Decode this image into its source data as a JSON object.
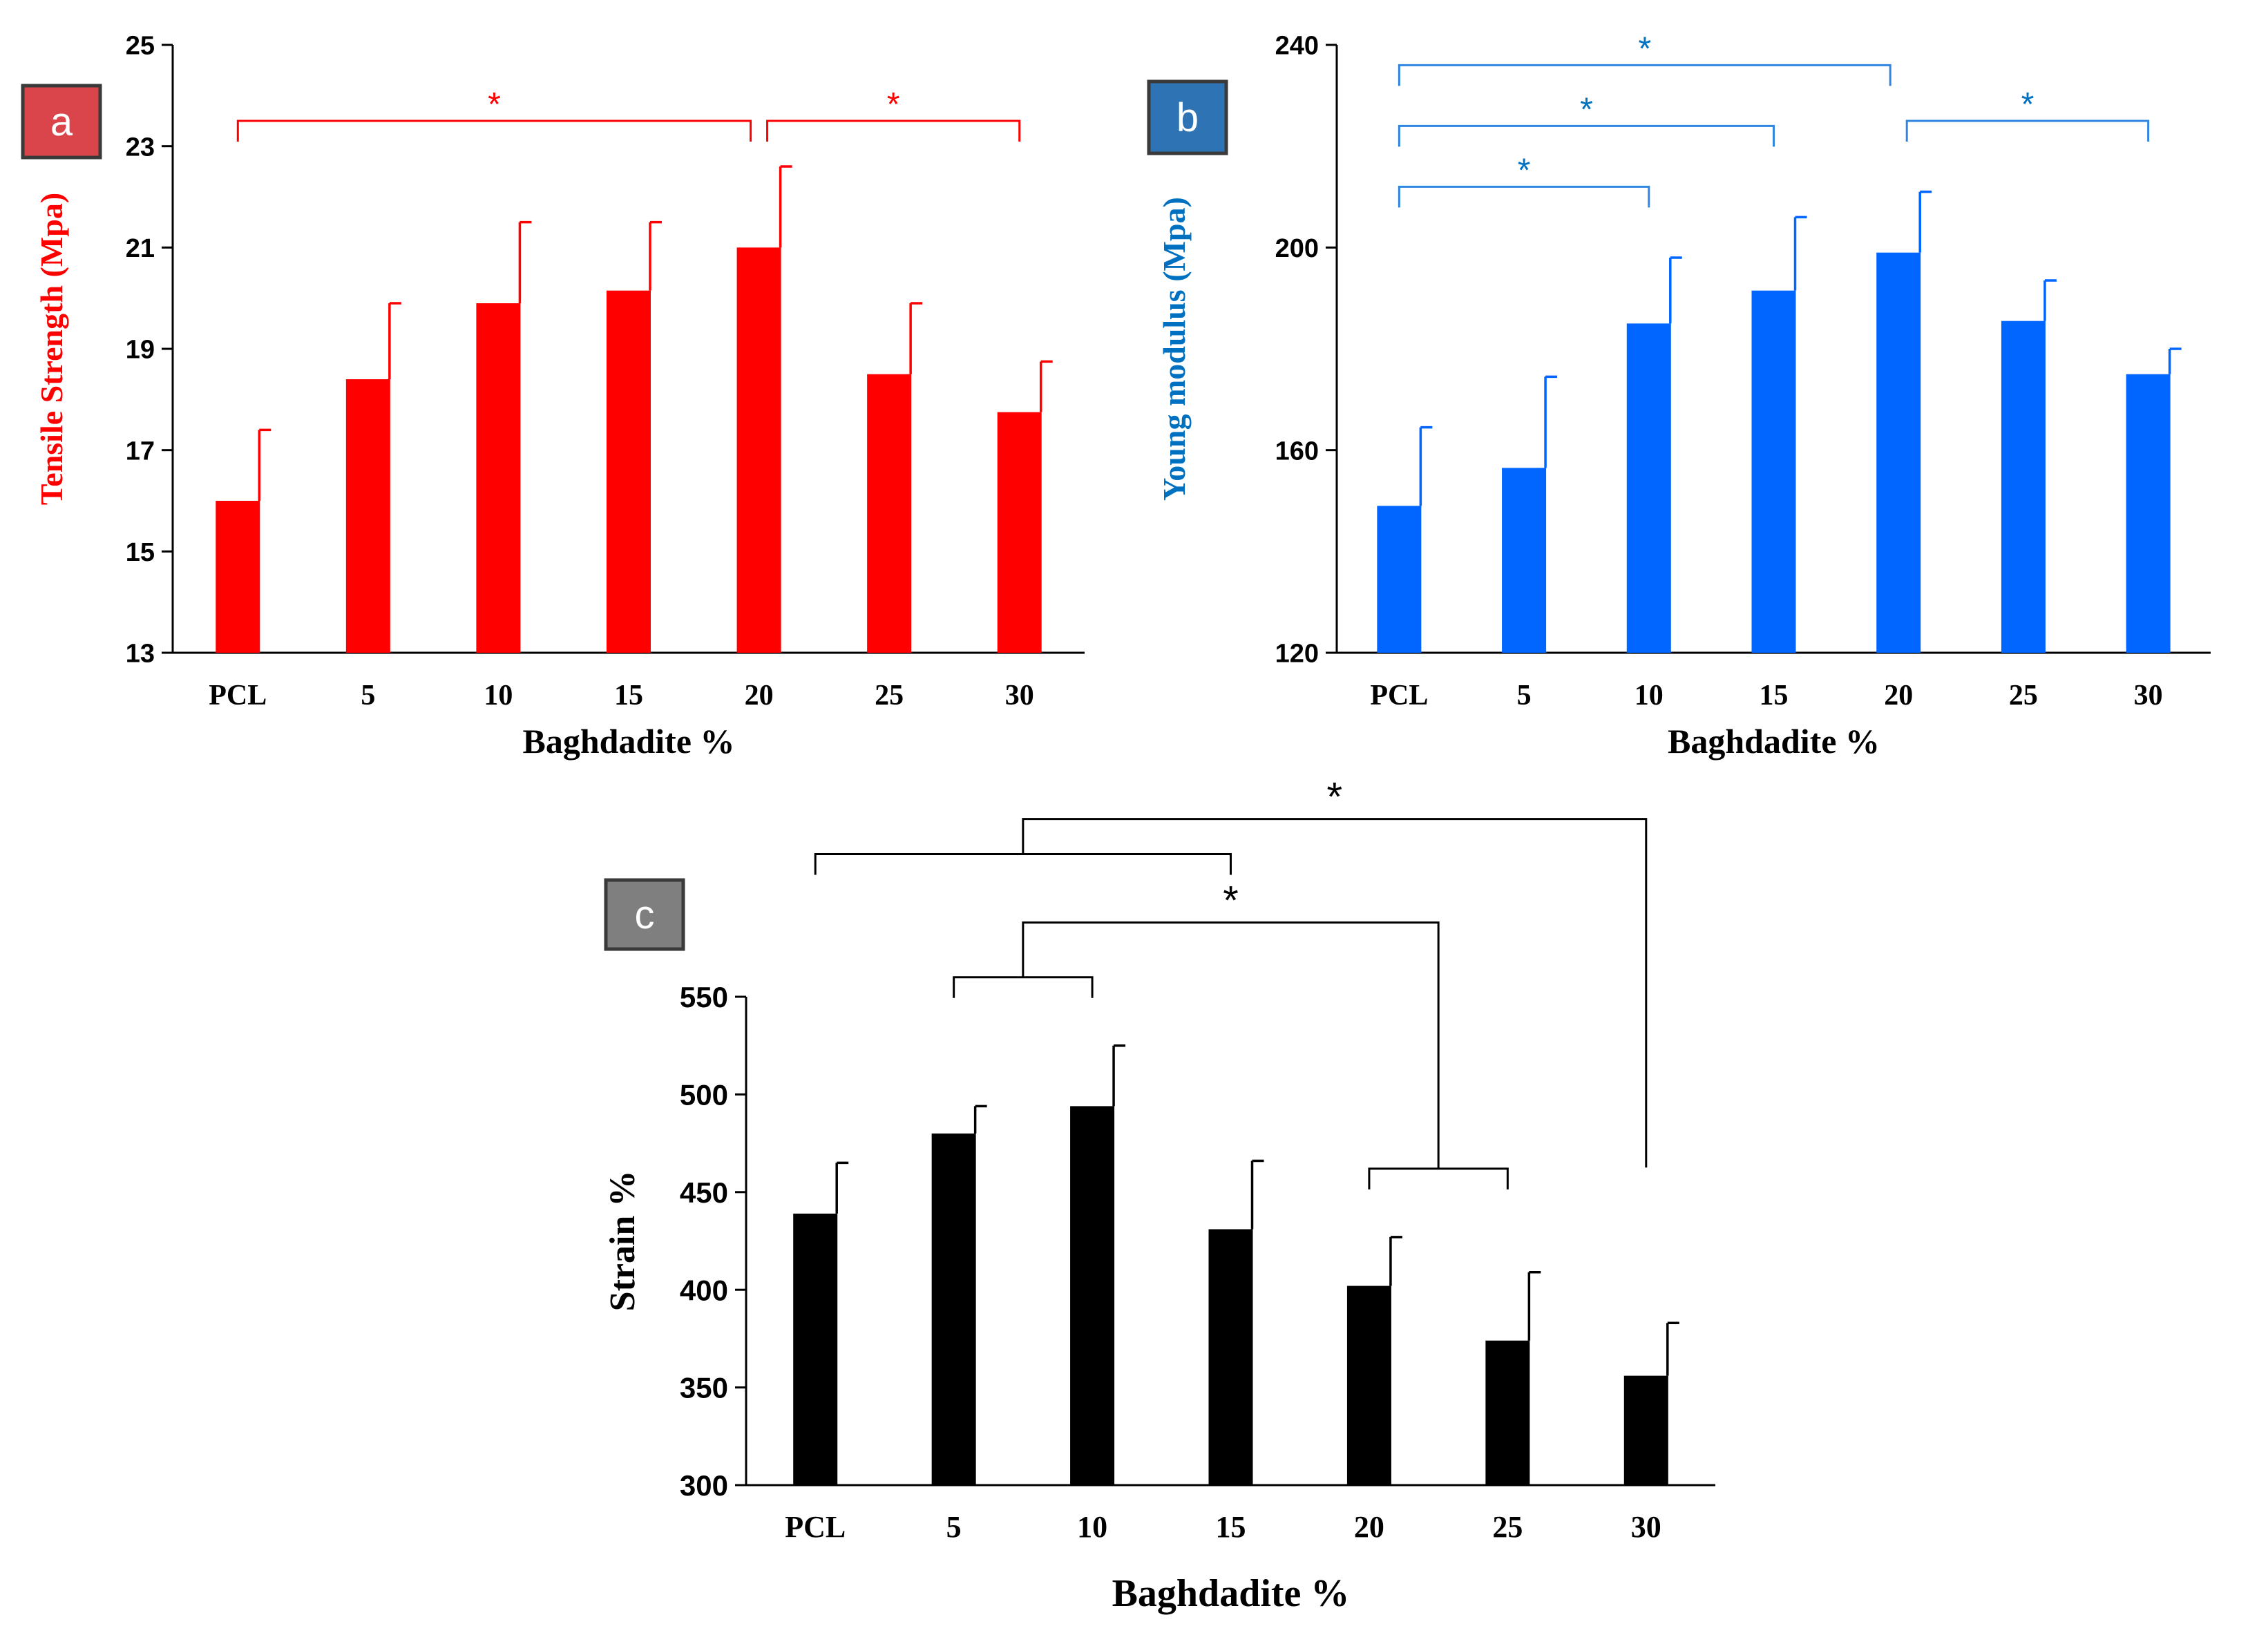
{
  "chart_data": [
    {
      "id": "a",
      "type": "bar",
      "badge": "a",
      "badge_color": "#d9454a",
      "color": "#ff0000",
      "text_color": "#ff0000",
      "ylabel": "Tensile Strength (Mpa)",
      "ylabel_color": "#ff0000",
      "xlabel": "Baghdadite %",
      "categories": [
        "PCL",
        "5",
        "10",
        "15",
        "20",
        "25",
        "30"
      ],
      "values": [
        16.0,
        18.4,
        19.9,
        20.15,
        21.0,
        18.5,
        17.75
      ],
      "errors": [
        1.4,
        1.5,
        1.6,
        1.35,
        1.6,
        1.4,
        1.0
      ],
      "ylim": [
        13,
        25
      ],
      "yticks": [
        "13",
        "15",
        "17",
        "19",
        "21",
        "23",
        "25"
      ],
      "significance": [
        {
          "from": 0,
          "to": 4,
          "label": "*",
          "level": 23.5
        },
        {
          "from": 4,
          "to": 6,
          "label": "*",
          "level": 23.5
        }
      ]
    },
    {
      "id": "b",
      "type": "bar",
      "badge": "b",
      "badge_color": "#2e74b5",
      "color": "#0066ff",
      "text_color": "#0070c0",
      "ylabel": "Young  modulus  (Mpa)",
      "ylabel_color": "#0070c0",
      "xlabel": "Baghdadite %",
      "categories": [
        "PCL",
        "5",
        "10",
        "15",
        "20",
        "25",
        "30"
      ],
      "values": [
        149,
        156.5,
        185,
        191.5,
        199,
        185.5,
        175
      ],
      "errors": [
        15.5,
        18,
        13,
        14.5,
        12,
        8,
        5
      ],
      "ylim": [
        120,
        240
      ],
      "yticks": [
        "120",
        "160",
        "200",
        "240"
      ],
      "significance": [
        {
          "from": 0,
          "to": 4,
          "label": "*",
          "level": 236
        },
        {
          "from": 0,
          "to": 3,
          "label": "*",
          "level": 224
        },
        {
          "from": 0,
          "to": 2,
          "label": "*",
          "level": 212
        },
        {
          "from": 4,
          "to": 6,
          "label": "*",
          "level": 225
        }
      ]
    },
    {
      "id": "c",
      "type": "bar",
      "badge": "c",
      "badge_color": "#7f7f7f",
      "color": "#000000",
      "text_color": "#000000",
      "ylabel": "Strain %",
      "ylabel_color": "#000000",
      "xlabel": "Baghdadite %",
      "categories": [
        "PCL",
        "5",
        "10",
        "15",
        "20",
        "25",
        "30"
      ],
      "values": [
        439,
        480,
        494,
        431,
        402,
        374,
        356
      ],
      "errors": [
        26,
        14,
        31,
        35,
        25,
        35,
        27
      ],
      "ylim": [
        300,
        550
      ],
      "yticks": [
        "300",
        "350",
        "400",
        "450",
        "500",
        "550"
      ],
      "group_brackets": [
        {
          "label": "*",
          "groupA": [
            0,
            3
          ],
          "levelA": 623,
          "groupB_to": 6,
          "top": 641
        },
        {
          "label": "*",
          "groupA": [
            1,
            2
          ],
          "levelA": 560,
          "groupB": [
            4,
            5
          ],
          "levelB": 462,
          "top": 588
        }
      ]
    }
  ]
}
